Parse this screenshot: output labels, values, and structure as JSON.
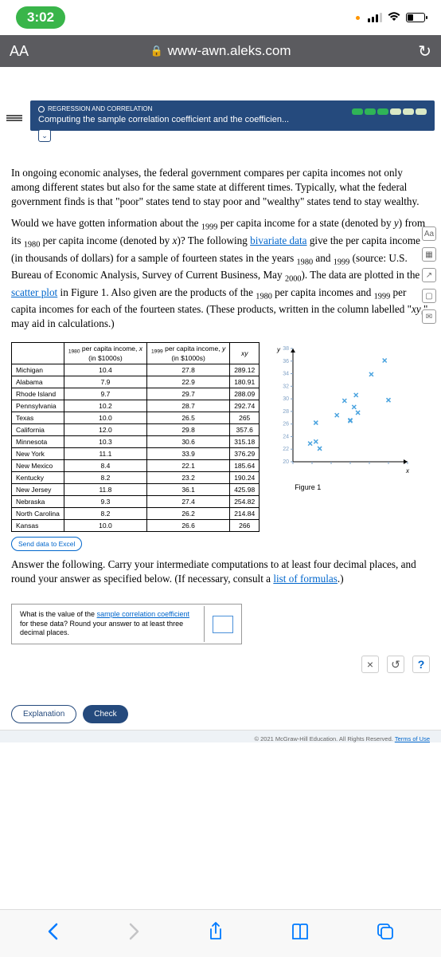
{
  "status": {
    "time": "3:02"
  },
  "addressbar": {
    "aa": "AA",
    "url": "www-awn.aleks.com"
  },
  "lesson": {
    "category": "REGRESSION AND CORRELATION",
    "title": "Computing the sample correlation coefficient and the coefficien...",
    "pills": [
      "#2fb457",
      "#2fb457",
      "#2fb457",
      "#d9e8c5",
      "#d9e8c5",
      "#d9e8c5"
    ]
  },
  "para1": "In ongoing economic analyses, the federal government compares per capita incomes not only among different states but also for the same state at different times. Typically, what the federal government finds is that \"poor\" states tend to stay poor and \"wealthy\" states tend to stay wealthy.",
  "para2a": "Would we have gotten information about the ",
  "para2b": " per capita income for a state (denoted by ",
  "para2c": ") from its ",
  "para2d": " per capita income (denoted by ",
  "para2e": ")? The following ",
  "para2f": " give the per capita income (in thousands of dollars) for a sample of fourteen states in the years ",
  "para2g": " and ",
  "para2h": " (source: U.S. Bureau of Economic Analysis, Survey of Current Business, May ",
  "para2i": "). The data are plotted in the ",
  "para2j": " in Figure 1. Also given are the products of the ",
  "para2k": " per capita incomes and ",
  "para2l": " per capita incomes for each of the fourteen states. (These products, written in the column labelled \"",
  "para2m": ",\" may aid in calculations.)",
  "y1999": "1999",
  "y1980": "1980",
  "y2000": "2000",
  "var_y": "y",
  "var_x": "x",
  "var_xy": "xy",
  "link_biv": "bivariate data",
  "link_scatter": "scatter plot",
  "link_formulas": "list of formulas",
  "link_corr": "sample correlation coefficient",
  "table": {
    "h1a": "1980",
    "h1b": " per capita income, ",
    "h1c": "x",
    "h1d": "(in $1000s)",
    "h2a": "1999",
    "h2b": " per capita income, ",
    "h2c": "y",
    "h2d": "(in $1000s)",
    "h3": "xy",
    "rows": [
      [
        "Michigan",
        "10.4",
        "27.8",
        "289.12"
      ],
      [
        "Alabama",
        "7.9",
        "22.9",
        "180.91"
      ],
      [
        "Rhode Island",
        "9.7",
        "29.7",
        "288.09"
      ],
      [
        "Pennsylvania",
        "10.2",
        "28.7",
        "292.74"
      ],
      [
        "Texas",
        "10.0",
        "26.5",
        "265"
      ],
      [
        "California",
        "12.0",
        "29.8",
        "357.6"
      ],
      [
        "Minnesota",
        "10.3",
        "30.6",
        "315.18"
      ],
      [
        "New York",
        "11.1",
        "33.9",
        "376.29"
      ],
      [
        "New Mexico",
        "8.4",
        "22.1",
        "185.64"
      ],
      [
        "Kentucky",
        "8.2",
        "23.2",
        "190.24"
      ],
      [
        "New Jersey",
        "11.8",
        "36.1",
        "425.98"
      ],
      [
        "Nebraska",
        "9.3",
        "27.4",
        "254.82"
      ],
      [
        "North Carolina",
        "8.2",
        "26.2",
        "214.84"
      ],
      [
        "Kansas",
        "10.0",
        "26.6",
        "266"
      ]
    ]
  },
  "send_label": "Send data to Excel",
  "chart": {
    "type": "scatter",
    "xlim": [
      7,
      13
    ],
    "ylim": [
      20,
      38
    ],
    "xticks": [
      7,
      8,
      9,
      10,
      11,
      12,
      13
    ],
    "yticks": [
      20,
      22,
      24,
      26,
      28,
      30,
      32,
      34,
      36,
      38
    ],
    "points": [
      [
        10.4,
        27.8
      ],
      [
        7.9,
        22.9
      ],
      [
        9.7,
        29.7
      ],
      [
        10.2,
        28.7
      ],
      [
        10.0,
        26.5
      ],
      [
        12.0,
        29.8
      ],
      [
        10.3,
        30.6
      ],
      [
        11.1,
        33.9
      ],
      [
        8.4,
        22.1
      ],
      [
        8.2,
        23.2
      ],
      [
        11.8,
        36.1
      ],
      [
        9.3,
        27.4
      ],
      [
        8.2,
        26.2
      ],
      [
        10.0,
        26.6
      ]
    ],
    "point_color": "#4aa3df",
    "tick_color": "#7d9fc4",
    "axis_color": "#000",
    "figure_label": "Figure 1",
    "xlabel": "x",
    "ylabel": "y"
  },
  "answer_instr": "Answer the following. Carry your intermediate computations to at least four decimal places, and round your answer as specified below. (If necessary, consult a ",
  "answer_instr2": ".)",
  "qa_text1": "What is the value of the ",
  "qa_text2": " for these data? Round your answer to at least three decimal places.",
  "toolbar": {
    "clear": "×",
    "undo": "↺",
    "help": "?"
  },
  "btn_explain": "Explanation",
  "btn_check": "Check",
  "copyright": "© 2021 McGraw-Hill Education. All Rights Reserved.  ",
  "terms": "Terms of Use"
}
